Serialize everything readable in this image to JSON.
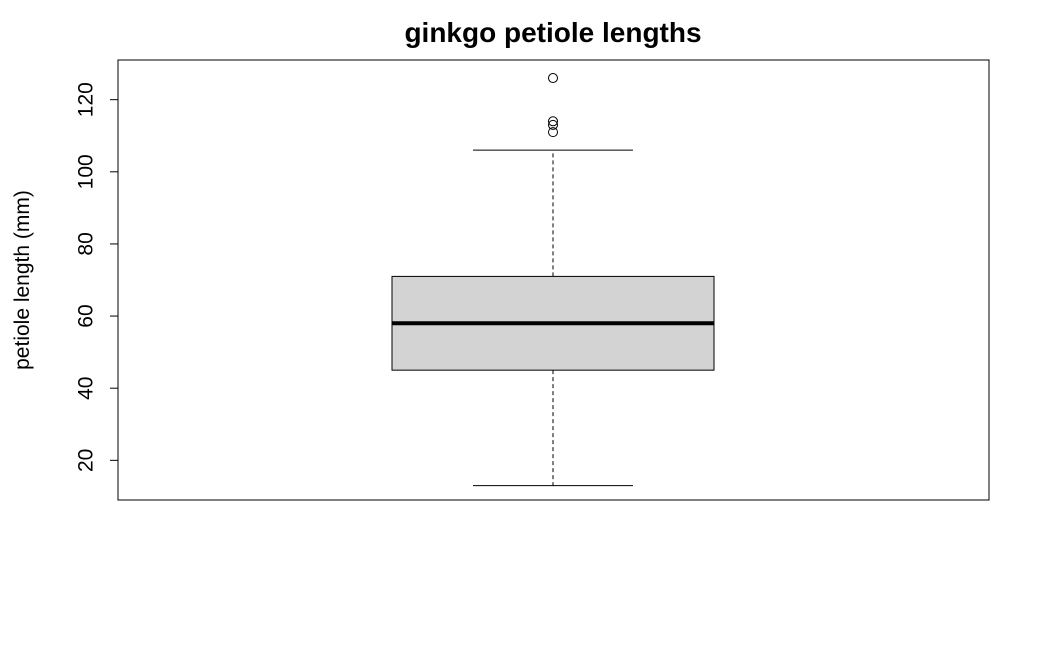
{
  "chart_data": {
    "type": "box",
    "title": "ginkgo petiole lengths",
    "xlabel": "",
    "ylabel": "petiole length (mm)",
    "ylim": [
      9,
      131
    ],
    "yticks": [
      20,
      40,
      60,
      80,
      100,
      120
    ],
    "ytick_labels": [
      "20",
      "40",
      "60",
      "80",
      "100",
      "120"
    ],
    "grid": false,
    "legend": "none",
    "box": {
      "whisker_low": 13,
      "q1": 45,
      "median": 58,
      "q3": 71,
      "whisker_high": 106,
      "outliers": [
        111,
        113,
        114,
        126
      ]
    },
    "colors": {
      "box_fill": "#d3d3d3",
      "stroke": "#000000"
    }
  }
}
